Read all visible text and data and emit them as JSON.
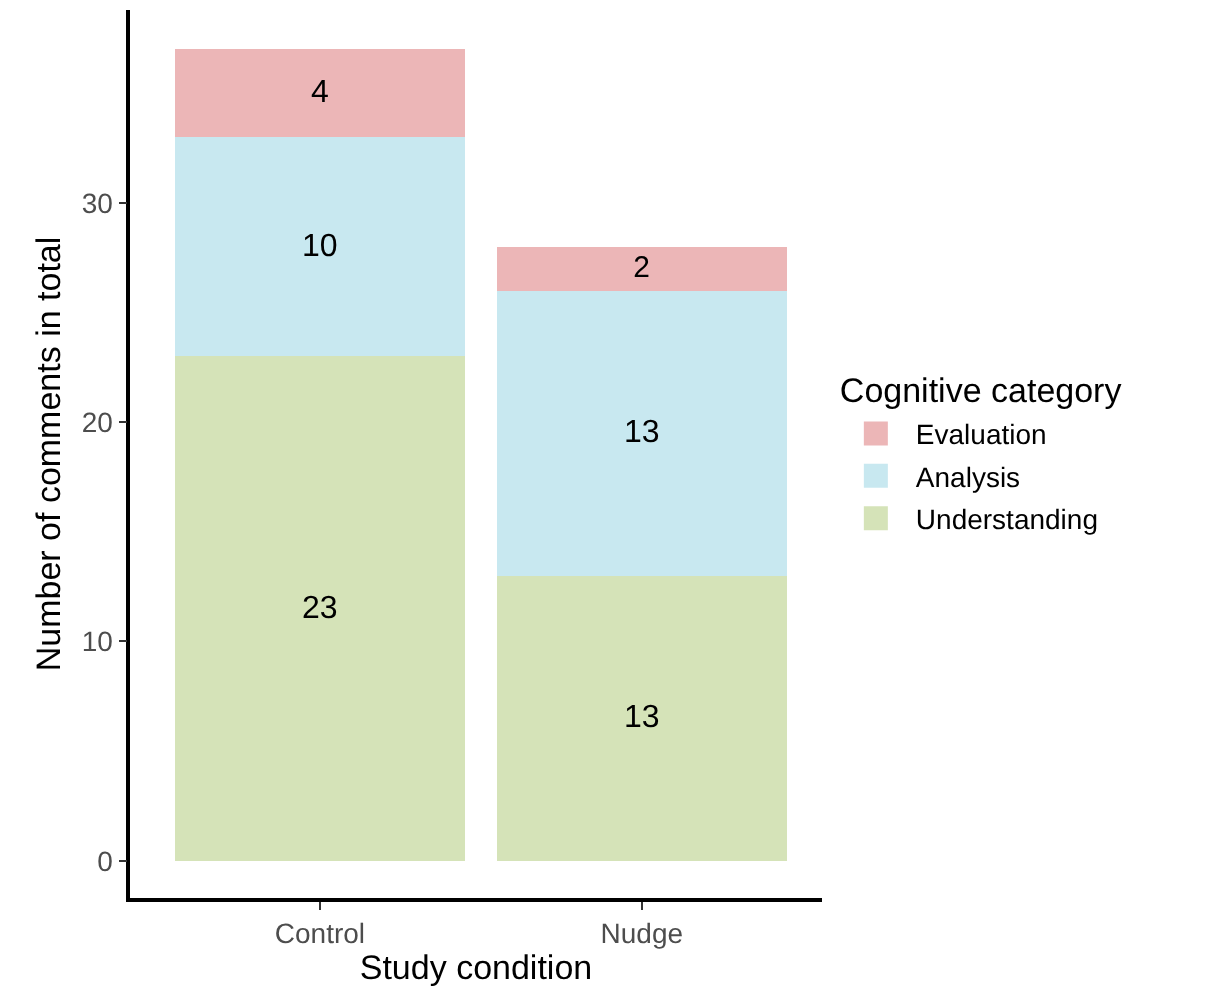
{
  "chart_data": {
    "type": "bar",
    "stacked": true,
    "xlabel": "Study condition",
    "ylabel": "Number of comments in total",
    "legend_title": "Cognitive category",
    "categories": [
      "Control",
      "Nudge"
    ],
    "series": [
      {
        "name": "Understanding",
        "color": "#d5e3b8",
        "values": [
          23,
          13
        ]
      },
      {
        "name": "Analysis",
        "color": "#c8e8f0",
        "values": [
          10,
          13
        ]
      },
      {
        "name": "Evaluation",
        "color": "#ecb6b7",
        "values": [
          4,
          2
        ]
      }
    ],
    "ylim": [
      -1.7,
      38.8
    ],
    "yticks": [
      0,
      10,
      20,
      30
    ],
    "data_labels": true,
    "legend": "right"
  }
}
